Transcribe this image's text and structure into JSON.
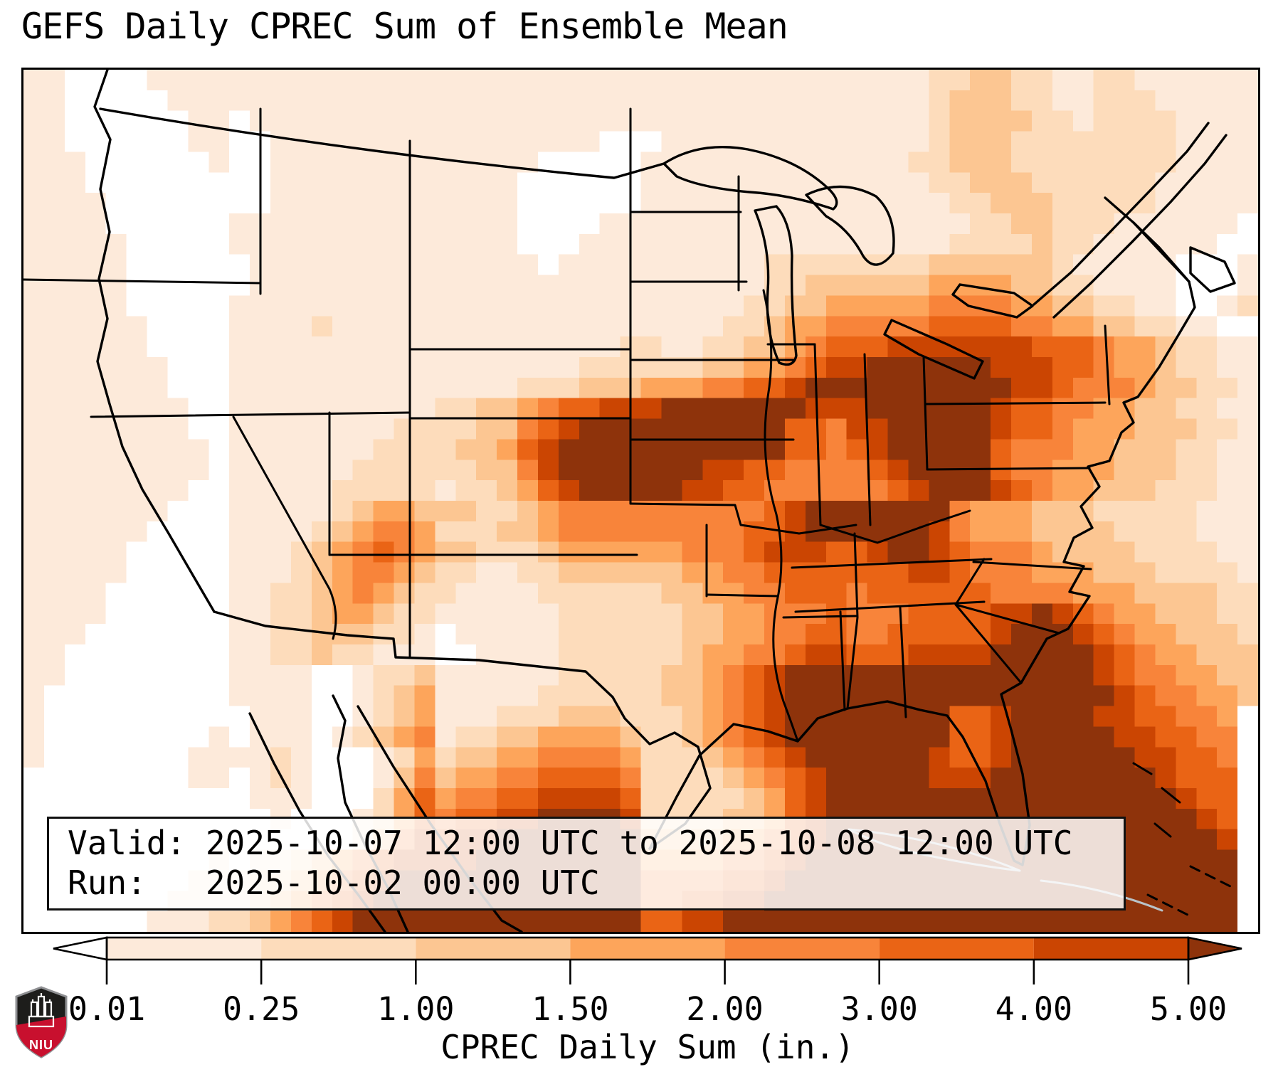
{
  "title": "GEFS Daily CPREC Sum of Ensemble Mean",
  "info_box": {
    "line1": "Valid: 2025-10-07 12:00 UTC to 2025-10-08 12:00 UTC",
    "line2": "Run:   2025-10-02 00:00 UTC"
  },
  "logo": {
    "text": "NIU",
    "shield_dark": "#1d1d1b",
    "shield_red": "#c8102e",
    "rim": "#8f9093"
  },
  "chart_data": {
    "type": "heatmap",
    "title": "GEFS Daily CPREC Sum of Ensemble Mean",
    "valid": "2025-10-07 12:00 UTC to 2025-10-08 12:00 UTC",
    "run": "2025-10-02 00:00 UTC",
    "colorbar": {
      "label": "CPREC Daily Sum (in.)",
      "tick_labels": [
        "0.01",
        "0.25",
        "1.00",
        "1.50",
        "2.00",
        "3.00",
        "4.00",
        "5.00"
      ],
      "levels_in": [
        0.01,
        0.25,
        1.0,
        1.5,
        2.0,
        3.0,
        4.0,
        5.0
      ],
      "extend": "both",
      "segment_colors": [
        "#fdeada",
        "#fddcbb",
        "#fcc692",
        "#fda55b",
        "#f8843a",
        "#ea6415",
        "#cb4502"
      ],
      "under_color": "#ffffff",
      "over_color": "#8e330b"
    },
    "grid": {
      "cols": 60,
      "rows": 42,
      "encoding": "one char per cell: 0=under(<0.01), 1-7=colorbar segments, 8=over(>5.00)",
      "rows_data": [
        "110000111111111111111111111111111111111111112233221122111111",
        "110000011111111111111111111111111111111111112333221122211111",
        "110000001101111111111111111111111111111111112333322122221111",
        "110000001100111111111111111100011111111111112333222222221111",
        "111000000100111111111111100000111111111111122333222222221111",
        "111000000000111111111111000000111111111111112233322222211111",
        "111100000000111111111111000000111111111111111223332222211111",
        "111100000011111111111111000011111111111111111122332221111110",
        "111110000011111111111111000111111111111111111222232211111100",
        "111110000001111111111111101111111111222222223333332111110001",
        "111110000001111111111111111111111111223333334444332211110001",
        "111110000011111111111111111111111112233444445555443322110012",
        "111111000011112111111111111111111122344555556666554433221100",
        "111111000011111111111111111112211223345666777777766654432211",
        "111111100011111111111111111222222334456778888887776654432211",
        "111111100011111111111111222333444556678888888888776555433221",
        "111111110011111111112233456677788888887778888887665544332211",
        "111111110011111111222233567888888888866577888887665444333221",
        "111111111011111112222334678888888888866567888886555443332211",
        "111111111011111122222233578888888776655556788886554443332211",
        "111111110011111222221223467888887766555555678887654433322211",
        "111111100011111234433322345555555555678888888544433322222111",
        "111111000011112345542223345555555556678888887544433332222111",
        "111110000011123456543322234444445556777667887655543333222211",
        "111110000011123455432211223333334455666666677655544433322221",
        "111100000011223454322111122222233445566656666665555444333322",
        "111100000011223443221111112222223344555655566667787654433322",
        "111000000011223332210111112222223344556655666667888765443332",
        "110000000011223221110011112222223445567766677778888876544333",
        "110000000011110012231111112222233456788888888888888876554433",
        "100000000011110012341111122222233456788888888888888887655443",
        "100000000001110012341112223332223456788888888667888877665540",
        "100000000101110123451223344443223456788888888667888887766550",
        "100000001111210001242334455554222345678888887667888888776650",
        "000000001101210001353445566665222234567888887778888888876660",
        "000000000001110002464556677776222223467888888888888888887660",
        "000000000000100012465667788887222233467888888888888888888760",
        "000000000000000013576778888888333344567888888888888888888870",
        "000000000101123456777788888888444455678888888888888888888880",
        "000000001112234567888888888888555566788888888888888888888880",
        "000000011112345678888888888888556677888888888888888888888880",
        "000000111223456788888888888888667788888888888888888888888880"
      ]
    }
  }
}
